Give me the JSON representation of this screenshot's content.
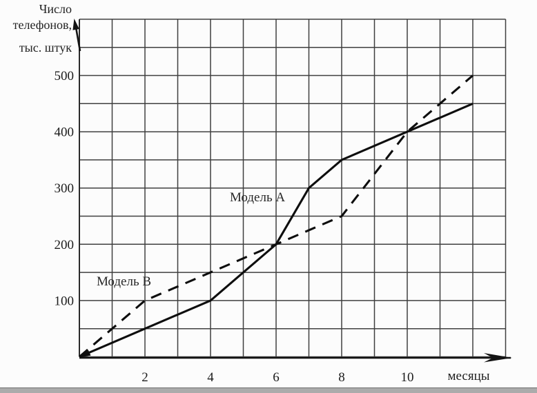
{
  "chart_data": {
    "type": "line",
    "title_lines": [
      "Число",
      "телефонов,",
      "тыс. штук"
    ],
    "xlabel": "месяцы",
    "x_range": [
      0,
      13
    ],
    "y_range": [
      0,
      600
    ],
    "grid": true,
    "x_grid_step": 1,
    "y_grid_step": 50,
    "x_ticks": [
      2,
      4,
      6,
      8,
      10
    ],
    "y_ticks": [
      100,
      200,
      300,
      400,
      500
    ],
    "series": [
      {
        "name": "Модель А",
        "style": "solid",
        "points": [
          [
            0,
            0
          ],
          [
            2,
            50
          ],
          [
            4,
            100
          ],
          [
            5,
            150
          ],
          [
            6,
            200
          ],
          [
            7,
            300
          ],
          [
            8,
            350
          ],
          [
            10,
            400
          ],
          [
            12,
            450
          ]
        ]
      },
      {
        "name": "Модель В",
        "style": "dashed",
        "points": [
          [
            0,
            0
          ],
          [
            2,
            100
          ],
          [
            4,
            150
          ],
          [
            6,
            200
          ],
          [
            8,
            250
          ],
          [
            10,
            400
          ],
          [
            12,
            500
          ]
        ]
      }
    ],
    "colors": {
      "line": "#0e0e0e",
      "grid": "#3f3f3f",
      "axis": "#151515",
      "background": "#fcfcfc",
      "footer_strip": "#ababab"
    }
  }
}
